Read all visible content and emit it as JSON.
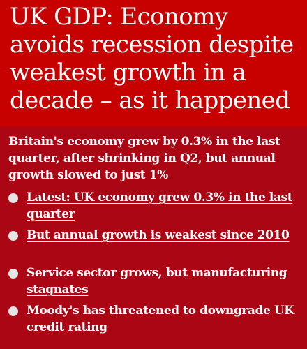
{
  "headline": "UK GDP: Economy avoids recession despite weakest growth in a decade – as it happened",
  "standfirst": "Britain's economy grew by 0.3% in the last quarter, after shrinking in Q2, but annual growth slowed to just 1%",
  "bullets": [
    {
      "text": "Latest: UK economy grew 0.3% in the last quarter",
      "is_link": true
    },
    {
      "text": "But annual growth is weakest since 2010",
      "is_link": true
    },
    {
      "text": "Service sector grows, but manufacturing stagnates",
      "is_link": true
    },
    {
      "text": "Moody's has threatened to downgrade UK credit rating",
      "is_link": false
    }
  ],
  "colors": {
    "headline_background": "#c70000",
    "standfirst_background": "#ab0613",
    "text": "#ffffff",
    "bullet_dot": "#e5e5e5"
  }
}
